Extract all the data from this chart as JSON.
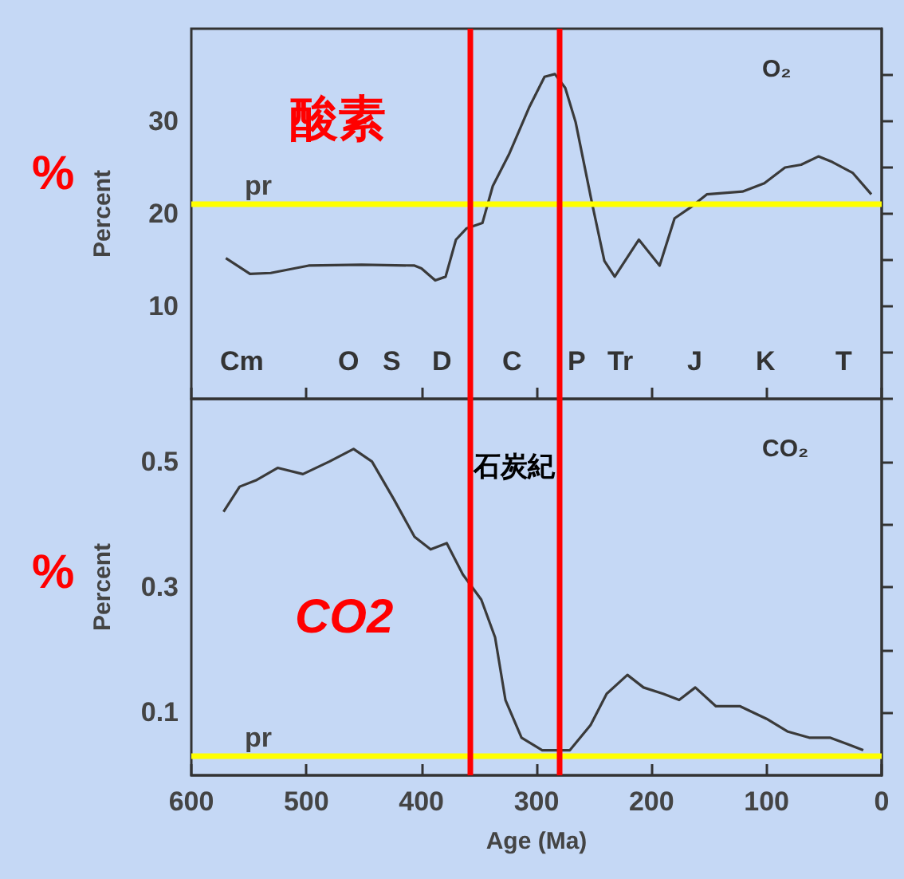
{
  "chart_data": [
    {
      "type": "line",
      "ylabel": "Percent",
      "xlim": [
        600,
        0
      ],
      "ylim": [
        0,
        40
      ],
      "xticks": [
        600,
        500,
        400,
        300,
        200,
        100,
        0
      ],
      "yticks": [
        {
          "value": 0,
          "label": null
        },
        {
          "value": 5,
          "label": null
        },
        10,
        {
          "value": 15,
          "label": null
        },
        20,
        {
          "value": 25,
          "label": null
        },
        30,
        {
          "value": 35,
          "label": null
        }
      ],
      "tick_labels": "y",
      "marker": "none",
      "series": [
        {
          "color": "#3a3a3a",
          "x": [
            570,
            549,
            531,
            498,
            452,
            406,
            400,
            388,
            379,
            370,
            361,
            347,
            338,
            324,
            306,
            293,
            284,
            275,
            266,
            252,
            241,
            232,
            211,
            193,
            180,
            166,
            152,
            121,
            102,
            84,
            70,
            55,
            43,
            25,
            9
          ],
          "values": [
            15.2,
            13.5,
            13.6,
            14.4,
            14.5,
            14.4,
            14.1,
            12.8,
            13.2,
            17.2,
            18.4,
            19.0,
            23.0,
            26.4,
            31.6,
            34.8,
            35.1,
            33.6,
            29.9,
            21.3,
            14.9,
            13.2,
            17.2,
            14.4,
            19.5,
            20.7,
            22.1,
            22.4,
            23.3,
            25.0,
            25.3,
            26.2,
            25.6,
            24.4,
            22.1
          ]
        }
      ],
      "ref_lines": [
        {
          "axis": "y",
          "value": 21,
          "label": "pr",
          "color": "#ffff00"
        },
        {
          "axis": "x",
          "value": 358,
          "color": "#ff0000"
        },
        {
          "axis": "x",
          "value": 280,
          "color": "#ff0000"
        }
      ],
      "annotations": [
        "O₂",
        "酸素",
        "%",
        "Cm",
        "O",
        "S",
        "D",
        "C",
        "P",
        "Tr",
        "J",
        "K",
        "T"
      ]
    },
    {
      "type": "line",
      "xlabel": "Age (Ma)",
      "ylabel": "Percent",
      "xlim": [
        600,
        0
      ],
      "ylim": [
        0,
        0.6
      ],
      "xticks": [
        600,
        500,
        400,
        300,
        200,
        100,
        0
      ],
      "yticks": [
        0.1,
        {
          "value": 0.2,
          "label": null
        },
        0.3,
        {
          "value": 0.4,
          "label": null
        },
        0.5
      ],
      "marker": "none",
      "series": [
        {
          "color": "#3a3a3a",
          "x": [
            572,
            558,
            544,
            525,
            503,
            480,
            459,
            443,
            424,
            406,
            392,
            378,
            364,
            348,
            336,
            327,
            313,
            295,
            271,
            253,
            239,
            221,
            207,
            190,
            176,
            162,
            144,
            123,
            100,
            82,
            63,
            45,
            30,
            16
          ],
          "values": [
            0.42,
            0.46,
            0.47,
            0.49,
            0.48,
            0.5,
            0.52,
            0.5,
            0.44,
            0.38,
            0.36,
            0.37,
            0.32,
            0.28,
            0.22,
            0.12,
            0.06,
            0.04,
            0.04,
            0.08,
            0.13,
            0.16,
            0.14,
            0.13,
            0.12,
            0.14,
            0.11,
            0.11,
            0.09,
            0.07,
            0.06,
            0.06,
            0.05,
            0.04
          ]
        }
      ],
      "ref_lines": [
        {
          "axis": "y",
          "value": 0.03,
          "label": "pr",
          "color": "#ffff00"
        },
        {
          "axis": "x",
          "value": 358,
          "color": "#ff0000"
        },
        {
          "axis": "x",
          "value": 280,
          "color": "#ff0000"
        }
      ],
      "annotations": [
        "CO₂",
        "石炭紀",
        "CO2",
        "%"
      ]
    }
  ]
}
